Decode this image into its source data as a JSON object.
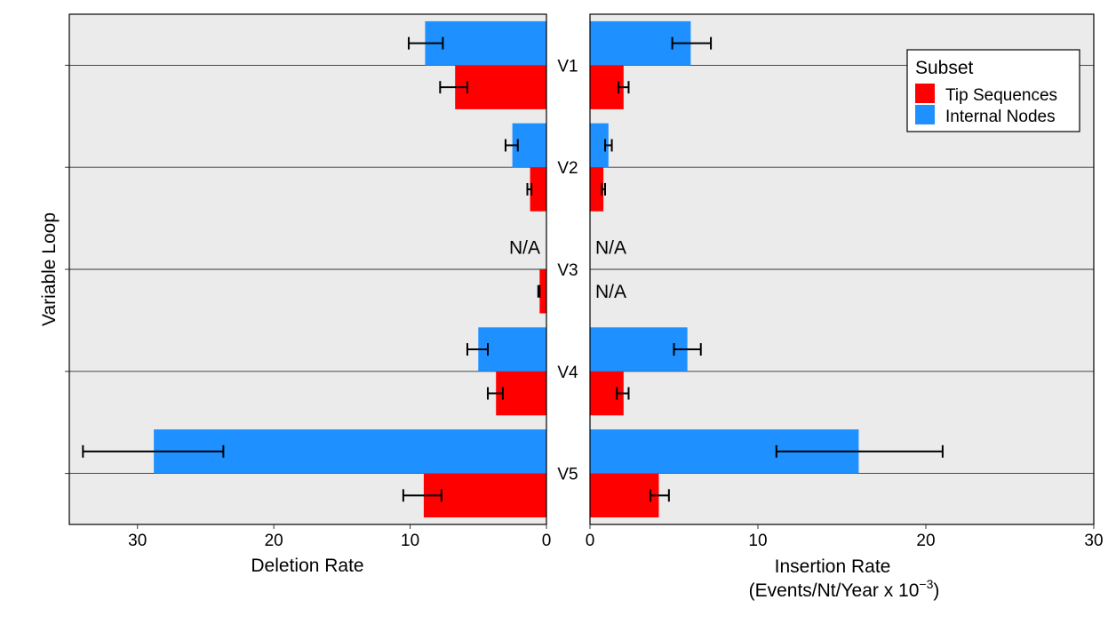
{
  "chart_data": {
    "type": "bar",
    "orientation": "horizontal",
    "categories": [
      "V1",
      "V2",
      "V3",
      "V4",
      "V5"
    ],
    "y_axis_title": "Variable Loop",
    "legend": {
      "title": "Subset",
      "placement": "top-right",
      "entries": [
        {
          "name": "Tip Sequences",
          "color": "#ff0000"
        },
        {
          "name": "Internal Nodes",
          "color": "#1e90ff"
        }
      ]
    },
    "na_label": "N/A",
    "panels": [
      {
        "id": "deletion",
        "xlabel": "Deletion Rate",
        "xlim": [
          0,
          35
        ],
        "reversed": true,
        "ticks": [
          0,
          10,
          20,
          30
        ],
        "series": [
          {
            "name": "Tip Sequences",
            "color": "#ff0000",
            "values": [
              6.7,
              1.2,
              0.5,
              3.7,
              9.0
            ],
            "err_low": [
              5.8,
              1.1,
              0.5,
              3.2,
              7.7
            ],
            "err_high": [
              7.8,
              1.4,
              0.6,
              4.3,
              10.5
            ]
          },
          {
            "name": "Internal Nodes",
            "color": "#1e90ff",
            "values": [
              8.9,
              2.5,
              null,
              5.0,
              28.8
            ],
            "err_low": [
              7.6,
              2.1,
              null,
              4.3,
              23.7
            ],
            "err_high": [
              10.1,
              3.0,
              null,
              5.8,
              34.0
            ]
          }
        ],
        "na": [
          {
            "category": "V3",
            "series": "Internal Nodes"
          }
        ]
      },
      {
        "id": "insertion",
        "xlabel": "Insertion Rate",
        "xlabel_line2": "(Events/Nt/Year x 10",
        "xlabel_sup": "−3",
        "xlabel_end": ")",
        "xlim": [
          0,
          30
        ],
        "reversed": false,
        "ticks": [
          0,
          10,
          20,
          30
        ],
        "series": [
          {
            "name": "Tip Sequences",
            "color": "#ff0000",
            "values": [
              2.0,
              0.8,
              null,
              2.0,
              4.1
            ],
            "err_low": [
              1.7,
              0.7,
              null,
              1.6,
              3.6
            ],
            "err_high": [
              2.3,
              0.9,
              null,
              2.3,
              4.7
            ]
          },
          {
            "name": "Internal Nodes",
            "color": "#1e90ff",
            "values": [
              6.0,
              1.1,
              null,
              5.8,
              16.0
            ],
            "err_low": [
              4.9,
              0.9,
              null,
              5.0,
              11.1
            ],
            "err_high": [
              7.2,
              1.3,
              null,
              6.6,
              21.0
            ]
          }
        ],
        "na": [
          {
            "category": "V3",
            "series": "Tip Sequences"
          },
          {
            "category": "V3",
            "series": "Internal Nodes"
          }
        ]
      }
    ]
  }
}
